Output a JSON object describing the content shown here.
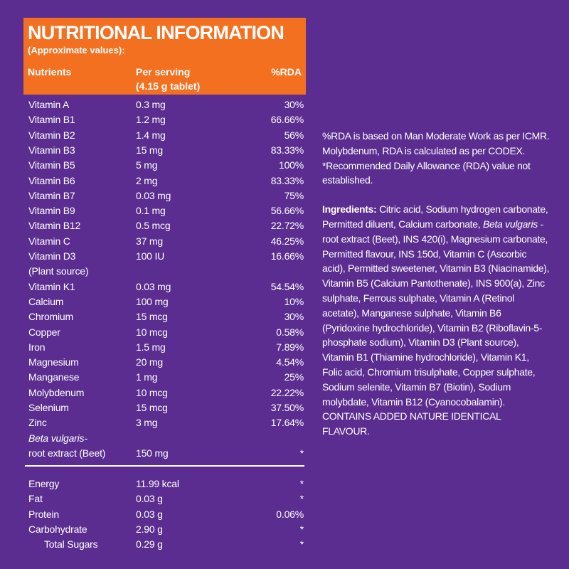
{
  "header": {
    "title": "NUTRITIONAL INFORMATION",
    "subtitle": "(Approximate values):",
    "columns": [
      "Nutrients",
      "Per serving",
      "%RDA"
    ],
    "serving_size": "(4.15 g tablet)"
  },
  "nutrients": [
    {
      "name": "Vitamin A",
      "amount": "0.3 mg",
      "rda": "30%"
    },
    {
      "name": "Vitamin B1",
      "amount": "1.2 mg",
      "rda": "66.66%"
    },
    {
      "name": "Vitamin B2",
      "amount": "1.4 mg",
      "rda": "56%"
    },
    {
      "name": "Vitamin B3",
      "amount": "15 mg",
      "rda": "83.33%"
    },
    {
      "name": "Vitamin B5",
      "amount": "5 mg",
      "rda": "100%"
    },
    {
      "name": "Vitamin B6",
      "amount": "2 mg",
      "rda": "83.33%"
    },
    {
      "name": "Vitamin B7",
      "amount": "0.03 mg",
      "rda": "75%"
    },
    {
      "name": "Vitamin B9",
      "amount": "0.1 mg",
      "rda": "56.66%"
    },
    {
      "name": "Vitamin B12",
      "amount": "0.5 mcg",
      "rda": "22.72%"
    },
    {
      "name": "Vitamin C",
      "amount": "37 mg",
      "rda": "46.25%"
    },
    {
      "name": "Vitamin D3",
      "note": "(Plant source)",
      "amount": "100 IU",
      "rda": "16.66%"
    },
    {
      "name": "Vitamin K1",
      "amount": "0.03 mg",
      "rda": "54.54%"
    },
    {
      "name": "Calcium",
      "amount": "100 mg",
      "rda": "10%"
    },
    {
      "name": "Chromium",
      "amount": "15 mcg",
      "rda": "30%"
    },
    {
      "name": "Copper",
      "amount": "10 mcg",
      "rda": "0.58%"
    },
    {
      "name": "Iron",
      "amount": "1.5 mg",
      "rda": "7.89%"
    },
    {
      "name": "Magnesium",
      "amount": "20 mg",
      "rda": "4.54%"
    },
    {
      "name": "Manganese",
      "amount": "1 mg",
      "rda": "25%"
    },
    {
      "name": "Molybdenum",
      "amount": "10 mcg",
      "rda": "22.22%"
    },
    {
      "name": "Selenium",
      "amount": "15 mcg",
      "rda": "37.50%"
    },
    {
      "name": "Zinc",
      "amount": "3 mg",
      "rda": "17.64%"
    },
    {
      "name_italic": "Beta vulgaris-",
      "name": "root extract (Beet)",
      "amount": "150 mg",
      "rda": "*"
    }
  ],
  "energy": [
    {
      "name": "Energy",
      "amount": "11.99  kcal",
      "rda": "*"
    },
    {
      "name": "Fat",
      "amount": "0.03 g",
      "rda": "*"
    },
    {
      "name": "Protein",
      "amount": "0.03 g",
      "rda": "0.06%"
    },
    {
      "name": "Carbohydrate",
      "amount": "2.90 g",
      "rda": "*"
    },
    {
      "name": "Total Sugars",
      "amount": "0.29 g",
      "rda": "*",
      "indent": true
    }
  ],
  "notes": {
    "rda_note": "%RDA is based on Man Moderate Work as per ICMR. Molybdenum, RDA is calculated as per CODEX. *Recommended Daily Allowance (RDA) value not established.",
    "ingredients_label": "Ingredients:",
    "ingredients_text1": " Citric acid, Sodium hydrogen carbonate, Permitted diluent, Calcium carbonate, ",
    "ingredients_italic": "Beta vulgaris",
    "ingredients_text2": " - root extract (Beet), INS 420(i), Magnesium carbonate, Permitted flavour, INS 150d, Vitamin C (Ascorbic acid), Permitted sweetener, Vitamin B3 (Niacinamide), Vitamin B5 (Calcium Pantothenate), INS 900(a), Zinc sulphate, Ferrous sulphate, Vitamin A (Retinol acetate), Manganese sulphate, Vitamin B6 (Pyridoxine hydrochloride), Vitamin B2 (Riboflavin-5-phosphate sodium), Vitamin D3 (Plant source), Vitamin B1 (Thiamine hydrochloride), Vitamin K1, Folic acid, Chromium trisulphate, Copper sulphate, Sodium selenite, Vitamin B7 (Biotin), Sodium molybdate, Vitamin B12 (Cyanocobalamin). CONTAINS ADDED NATURE IDENTICAL FLAVOUR."
  }
}
